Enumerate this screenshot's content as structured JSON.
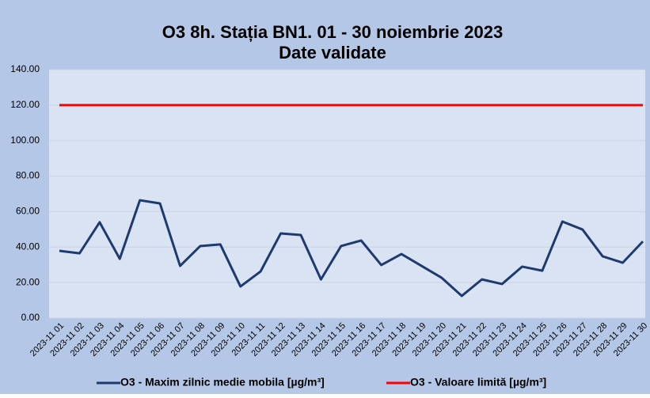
{
  "chart_data": {
    "type": "line",
    "title": "O3 8h. Stația BN1. 01 - 30 noiembrie 2023",
    "subtitle": "Date validate",
    "categories": [
      "2023-11 01",
      "2023-11 02",
      "2023-11 03",
      "2023-11 04",
      "2023-11 05",
      "2023-11 06",
      "2023-11 07",
      "2023-11 08",
      "2023-11 09",
      "2023-11 10",
      "2023-11 11",
      "2023-11 12",
      "2023-11 13",
      "2023-11 14",
      "2023-11 15",
      "2023-11 16",
      "2023-11 17",
      "2023-11 18",
      "2023-11 19",
      "2023-11 20",
      "2023-11 21",
      "2023-11 22",
      "2023-11 23",
      "2023-11 24",
      "2023-11 25",
      "2023-11 26",
      "2023-11 27",
      "2023-11 28",
      "2023-11 29",
      "2023-11 30"
    ],
    "series": [
      {
        "name": "O3 - Maxim zilnic medie mobila [µg/m³]",
        "color": "#1f3a6e",
        "values": [
          37.9,
          36.5,
          54,
          33.4,
          66.4,
          64.6,
          29.4,
          40.6,
          41.5,
          17.8,
          26.3,
          47.7,
          46.8,
          21.8,
          40.6,
          43.7,
          29.9,
          36.1,
          29.4,
          22.7,
          12.5,
          21.8,
          19.2,
          29,
          26.7,
          54.4,
          49.9,
          34.8,
          31.2,
          43.2
        ]
      },
      {
        "name": "O3 - Valoare limită [µg/m³]",
        "color": "#ff0000",
        "values": [
          120,
          120,
          120,
          120,
          120,
          120,
          120,
          120,
          120,
          120,
          120,
          120,
          120,
          120,
          120,
          120,
          120,
          120,
          120,
          120,
          120,
          120,
          120,
          120,
          120,
          120,
          120,
          120,
          120,
          120
        ]
      }
    ],
    "ylim": [
      0,
      140
    ],
    "yticks": [
      {
        "value": 0,
        "label": "0.00"
      },
      {
        "value": 20,
        "label": "20.00"
      },
      {
        "value": 40,
        "label": "40.00"
      },
      {
        "value": 60,
        "label": "60.00"
      },
      {
        "value": 80,
        "label": "80.00"
      },
      {
        "value": 100,
        "label": "100.00"
      },
      {
        "value": 120,
        "label": "120.00"
      },
      {
        "value": 140,
        "label": "140.00"
      }
    ],
    "grid": true,
    "legend": "bottom"
  }
}
